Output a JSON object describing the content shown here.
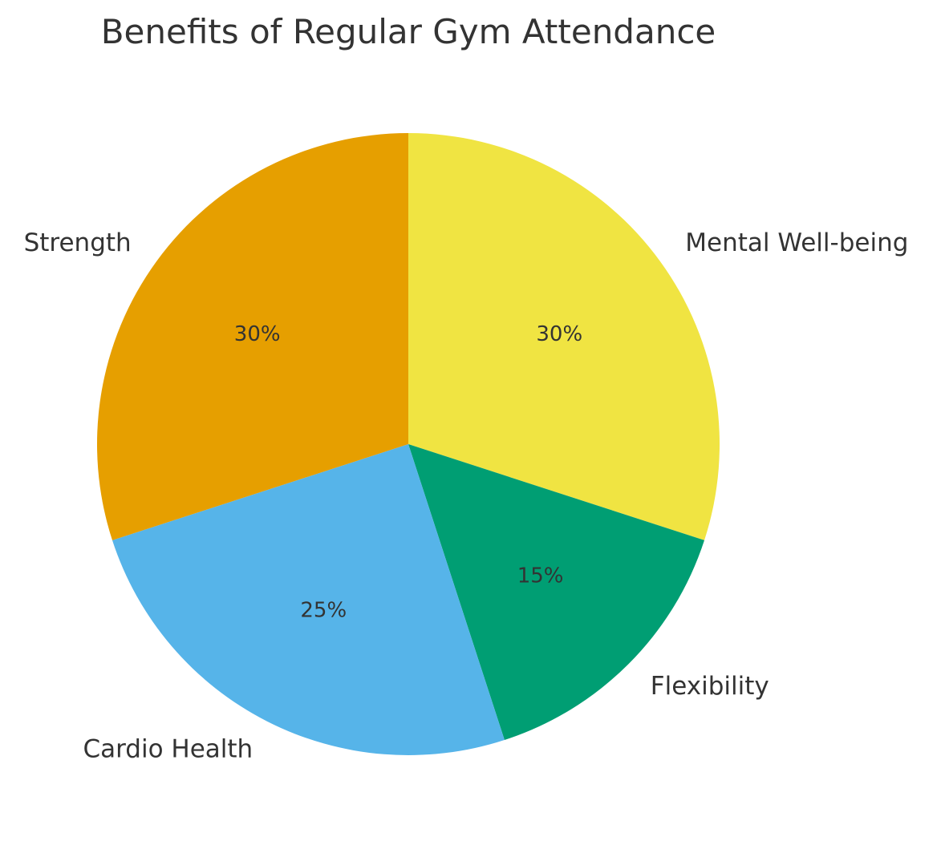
{
  "chart_data": {
    "type": "pie",
    "title": "Benefits of Regular Gym Attendance",
    "start_angle_deg": 90,
    "direction": "clockwise",
    "legend": "none",
    "slices": [
      {
        "label": "Mental Well-being",
        "value": 30,
        "pct_label": "30%",
        "color": "#F0E442"
      },
      {
        "label": "Flexibility",
        "value": 15,
        "pct_label": "15%",
        "color": "#009E73"
      },
      {
        "label": "Cardio Health",
        "value": 25,
        "pct_label": "25%",
        "color": "#56B4E9"
      },
      {
        "label": "Strength",
        "value": 30,
        "pct_label": "30%",
        "color": "#E69F00"
      }
    ]
  }
}
